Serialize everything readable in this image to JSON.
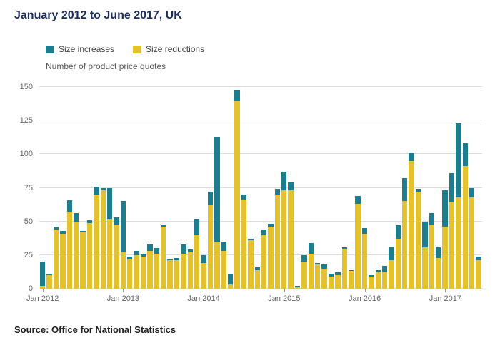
{
  "page": {
    "title": "January 2012 to June 2017, UK",
    "subtitle": "Number of product price quotes",
    "source": "Source: Office for National Statistics"
  },
  "legend": [
    {
      "label": "Size increases",
      "color": "#1d7d8c"
    },
    {
      "label": "Size reductions",
      "color": "#e4c22e"
    }
  ],
  "chart_data": {
    "type": "bar",
    "stacked": true,
    "stack_order_bottom_to_top": [
      "Size reductions",
      "Size increases"
    ],
    "title": "January 2012 to June 2017, UK",
    "ylabel": "Number of product price quotes",
    "xlabel": "",
    "ylim": [
      0,
      150
    ],
    "yticks": [
      0,
      25,
      50,
      75,
      100,
      125,
      150
    ],
    "xticks": [
      "Jan 2012",
      "Jan 2013",
      "Jan 2014",
      "Jan 2015",
      "Jan 2016",
      "Jan 2017"
    ],
    "grid": "horizontal",
    "legend_position": "top-left",
    "x": [
      "Jan 2012",
      "Feb 2012",
      "Mar 2012",
      "Apr 2012",
      "May 2012",
      "Jun 2012",
      "Jul 2012",
      "Aug 2012",
      "Sep 2012",
      "Oct 2012",
      "Nov 2012",
      "Dec 2012",
      "Jan 2013",
      "Feb 2013",
      "Mar 2013",
      "Apr 2013",
      "May 2013",
      "Jun 2013",
      "Jul 2013",
      "Aug 2013",
      "Sep 2013",
      "Oct 2013",
      "Nov 2013",
      "Dec 2013",
      "Jan 2014",
      "Feb 2014",
      "Mar 2014",
      "Apr 2014",
      "May 2014",
      "Jun 2014",
      "Jul 2014",
      "Aug 2014",
      "Sep 2014",
      "Oct 2014",
      "Nov 2014",
      "Dec 2014",
      "Jan 2015",
      "Feb 2015",
      "Mar 2015",
      "Apr 2015",
      "May 2015",
      "Jun 2015",
      "Jul 2015",
      "Aug 2015",
      "Sep 2015",
      "Oct 2015",
      "Nov 2015",
      "Dec 2015",
      "Jan 2016",
      "Feb 2016",
      "Mar 2016",
      "Apr 2016",
      "May 2016",
      "Jun 2016",
      "Jul 2016",
      "Aug 2016",
      "Sep 2016",
      "Oct 2016",
      "Nov 2016",
      "Dec 2016",
      "Jan 2017",
      "Feb 2017",
      "Mar 2017",
      "Apr 2017",
      "May 2017",
      "Jun 2017"
    ],
    "series": [
      {
        "name": "Size increases",
        "color": "#1d7d8c",
        "values": [
          18,
          1,
          2,
          2,
          9,
          6,
          1,
          2,
          6,
          2,
          23,
          6,
          38,
          2,
          3,
          2,
          5,
          4,
          1,
          1,
          2,
          7,
          2,
          12,
          6,
          10,
          78,
          7,
          8,
          8,
          4,
          1,
          2,
          4,
          2,
          4,
          14,
          6,
          1,
          5,
          8,
          1,
          3,
          2,
          2,
          2,
          1,
          6,
          4,
          1,
          2,
          5,
          10,
          10,
          17,
          6,
          2,
          19,
          9,
          8,
          27,
          22,
          55,
          17,
          7,
          3
        ]
      },
      {
        "name": "Size reductions",
        "color": "#e4c22e",
        "values": [
          2,
          10,
          44,
          41,
          57,
          50,
          42,
          49,
          70,
          73,
          52,
          47,
          27,
          22,
          25,
          24,
          28,
          26,
          46,
          21,
          21,
          26,
          27,
          40,
          19,
          62,
          35,
          28,
          3,
          140,
          66,
          36,
          14,
          40,
          46,
          70,
          73,
          73,
          1,
          20,
          26,
          18,
          15,
          9,
          10,
          29,
          13,
          63,
          41,
          9,
          12,
          12,
          21,
          37,
          65,
          95,
          72,
          31,
          47,
          23,
          46,
          64,
          68,
          91,
          68,
          21
        ]
      }
    ]
  }
}
